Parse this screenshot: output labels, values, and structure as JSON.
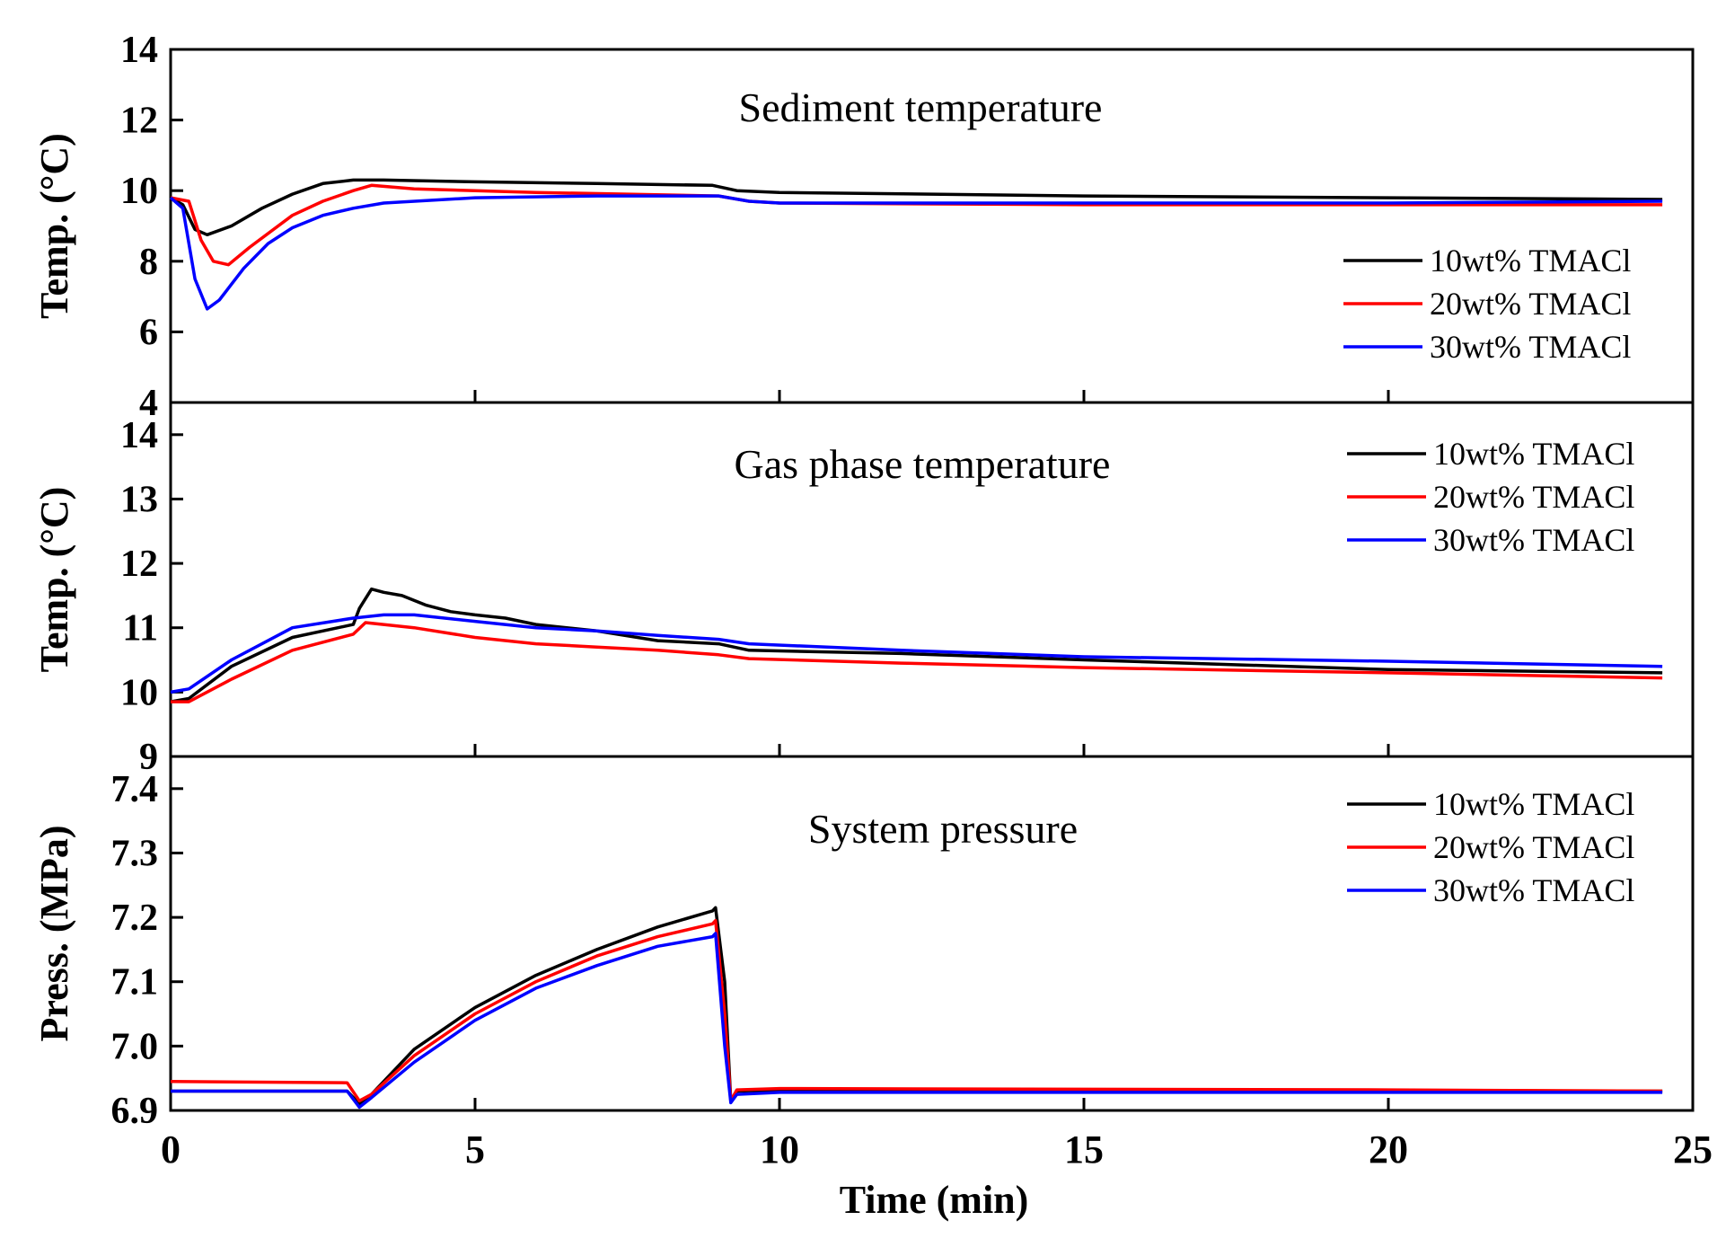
{
  "chart_data": [
    {
      "type": "line",
      "title": "Sediment temperature",
      "xlabel": "Time (min)",
      "ylabel": "Temp. (°C)",
      "xlim": [
        0,
        25
      ],
      "ylim": [
        4,
        14
      ],
      "yticks": [
        4,
        6,
        8,
        10,
        12,
        14
      ],
      "legend_position": "right",
      "series": [
        {
          "name": "10wt% TMACl",
          "color": "#000000",
          "x": [
            0,
            0.2,
            0.4,
            0.6,
            1,
            1.5,
            2,
            2.5,
            3,
            3.5,
            5,
            7,
            8.9,
            9.3,
            10,
            15,
            20,
            24.5
          ],
          "y": [
            9.8,
            9.6,
            8.9,
            8.75,
            9.0,
            9.5,
            9.9,
            10.2,
            10.3,
            10.3,
            10.25,
            10.2,
            10.15,
            10.0,
            9.95,
            9.85,
            9.8,
            9.75
          ]
        },
        {
          "name": "20wt% TMACl",
          "color": "#ff0000",
          "x": [
            0,
            0.3,
            0.5,
            0.7,
            0.95,
            1.3,
            2,
            2.5,
            3,
            3.3,
            4,
            6,
            9,
            9.5,
            10,
            15,
            20,
            24.5
          ],
          "y": [
            9.8,
            9.7,
            8.6,
            8.0,
            7.9,
            8.4,
            9.3,
            9.7,
            10.0,
            10.15,
            10.05,
            9.95,
            9.85,
            9.7,
            9.65,
            9.6,
            9.6,
            9.6
          ]
        },
        {
          "name": "30wt% TMACl",
          "color": "#0000ff",
          "x": [
            0,
            0.2,
            0.4,
            0.6,
            0.8,
            1.2,
            1.6,
            2,
            2.5,
            3,
            3.5,
            5,
            7,
            9,
            9.5,
            10,
            15,
            20,
            24.5
          ],
          "y": [
            9.8,
            9.5,
            7.5,
            6.65,
            6.9,
            7.8,
            8.5,
            8.95,
            9.3,
            9.5,
            9.65,
            9.8,
            9.85,
            9.85,
            9.7,
            9.65,
            9.65,
            9.65,
            9.7
          ]
        }
      ]
    },
    {
      "type": "line",
      "title": "Gas phase temperature",
      "xlabel": "Time (min)",
      "ylabel": "Temp. (°C)",
      "xlim": [
        0,
        25
      ],
      "ylim": [
        9,
        14.5
      ],
      "yticks": [
        9,
        10,
        11,
        12,
        13,
        14
      ],
      "legend_position": "top-right",
      "series": [
        {
          "name": "10wt% TMACl",
          "color": "#000000",
          "x": [
            0,
            0.3,
            1,
            2,
            3,
            3.1,
            3.3,
            3.5,
            3.8,
            4.2,
            4.6,
            5,
            5.5,
            6,
            7,
            8,
            9,
            9.5,
            12,
            15,
            20,
            24.5
          ],
          "y": [
            9.85,
            9.9,
            10.4,
            10.85,
            11.05,
            11.3,
            11.6,
            11.55,
            11.5,
            11.35,
            11.25,
            11.2,
            11.15,
            11.05,
            10.95,
            10.8,
            10.75,
            10.65,
            10.6,
            10.5,
            10.35,
            10.3
          ]
        },
        {
          "name": "20wt% TMACl",
          "color": "#ff0000",
          "x": [
            0,
            0.3,
            1,
            2,
            3,
            3.2,
            4,
            5,
            6,
            7,
            8,
            9,
            9.5,
            12,
            15,
            20,
            24.5
          ],
          "y": [
            9.85,
            9.85,
            10.2,
            10.65,
            10.9,
            11.08,
            11.0,
            10.85,
            10.75,
            10.7,
            10.65,
            10.58,
            10.52,
            10.45,
            10.38,
            10.3,
            10.22
          ]
        },
        {
          "name": "30wt% TMACl",
          "color": "#0000ff",
          "x": [
            0,
            0.3,
            1,
            2,
            3,
            3.5,
            4,
            5,
            6,
            7,
            8,
            9,
            9.5,
            12,
            15,
            20,
            24.5
          ],
          "y": [
            10.0,
            10.05,
            10.5,
            11.0,
            11.15,
            11.2,
            11.2,
            11.1,
            11.0,
            10.95,
            10.88,
            10.82,
            10.75,
            10.65,
            10.55,
            10.48,
            10.4
          ]
        }
      ]
    },
    {
      "type": "line",
      "title": "System pressure",
      "xlabel": "Time (min)",
      "ylabel": "Press. (MPa)",
      "xlim": [
        0,
        25
      ],
      "ylim": [
        6.9,
        7.45
      ],
      "yticks": [
        6.9,
        7.0,
        7.1,
        7.2,
        7.3,
        7.4
      ],
      "xticks": [
        0,
        5,
        10,
        15,
        20,
        25
      ],
      "legend_position": "top-right",
      "series": [
        {
          "name": "10wt% TMACl",
          "color": "#000000",
          "x": [
            0,
            2.9,
            3.1,
            3.3,
            4,
            5,
            6,
            7,
            8,
            8.9,
            8.95,
            9.1,
            9.2,
            9.3,
            10,
            15,
            20,
            24.5
          ],
          "y": [
            6.93,
            6.93,
            6.91,
            6.925,
            6.995,
            7.06,
            7.11,
            7.15,
            7.185,
            7.21,
            7.215,
            7.1,
            6.915,
            6.93,
            6.932,
            6.932,
            6.931,
            6.93
          ]
        },
        {
          "name": "20wt% TMACl",
          "color": "#ff0000",
          "x": [
            0,
            2.9,
            3.1,
            3.3,
            4,
            5,
            6,
            7,
            8,
            8.9,
            8.95,
            9.1,
            9.2,
            9.3,
            10,
            15,
            20,
            24.5
          ],
          "y": [
            6.945,
            6.943,
            6.915,
            6.925,
            6.985,
            7.05,
            7.1,
            7.14,
            7.17,
            7.19,
            7.195,
            7.05,
            6.915,
            6.932,
            6.934,
            6.933,
            6.932,
            6.93
          ]
        },
        {
          "name": "30wt% TMACl",
          "color": "#0000ff",
          "x": [
            0,
            2.9,
            3.1,
            3.3,
            4,
            5,
            6,
            7,
            8,
            8.9,
            8.95,
            9.1,
            9.2,
            9.3,
            10,
            15,
            20,
            24.5
          ],
          "y": [
            6.93,
            6.93,
            6.905,
            6.92,
            6.975,
            7.04,
            7.09,
            7.125,
            7.155,
            7.17,
            7.175,
            7.0,
            6.912,
            6.925,
            6.928,
            6.928,
            6.928,
            6.928
          ]
        }
      ]
    }
  ],
  "shared_xlabel": "Time (min)",
  "xticks": [
    0,
    5,
    10,
    15,
    20,
    25
  ]
}
